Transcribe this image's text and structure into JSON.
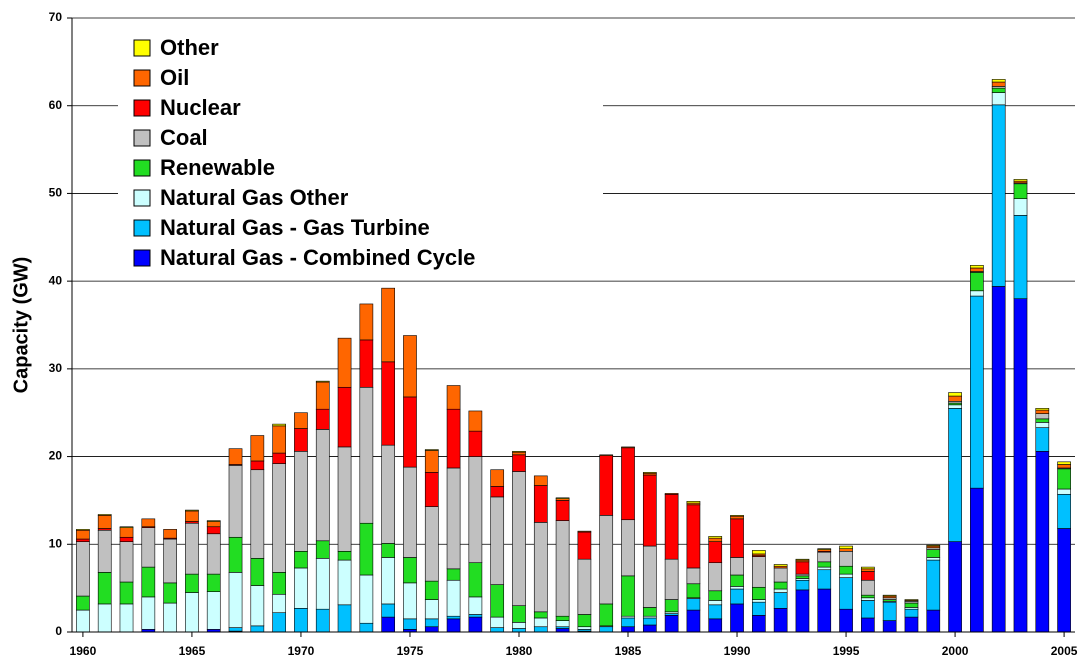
{
  "chart_data": {
    "type": "stacked_bar",
    "y_label": "Capacity (GW)",
    "x": [
      1960,
      1961,
      1962,
      1963,
      1964,
      1965,
      1966,
      1967,
      1968,
      1969,
      1970,
      1971,
      1972,
      1973,
      1974,
      1975,
      1976,
      1977,
      1978,
      1979,
      1980,
      1981,
      1982,
      1983,
      1984,
      1985,
      1986,
      1987,
      1988,
      1989,
      1990,
      1991,
      1992,
      1993,
      1994,
      1995,
      1996,
      1997,
      1998,
      1999,
      2000,
      2001,
      2002,
      2003,
      2004,
      2005
    ],
    "xlim": [
      1959.5,
      2005.5
    ],
    "xticks": [
      1960,
      1965,
      1970,
      1975,
      1980,
      1985,
      1990,
      1995,
      2000,
      2005
    ],
    "ylim": [
      0,
      70
    ],
    "yticks": [
      0,
      10,
      20,
      30,
      40,
      50,
      60,
      70
    ],
    "grid": true,
    "legend": "upper left",
    "series": [
      {
        "name": "Natural Gas - Combined Cycle",
        "color": "#0000ff",
        "values": [
          0,
          0,
          0,
          0.3,
          0,
          0,
          0.3,
          0.1,
          0,
          0,
          0,
          0,
          0,
          0,
          1.7,
          0.3,
          0.6,
          1.5,
          1.7,
          0,
          0,
          0,
          0.4,
          0.1,
          0,
          0.6,
          0.8,
          1.9,
          2.5,
          1.5,
          3.2,
          1.9,
          2.7,
          4.8,
          4.9,
          2.6,
          1.6,
          1.3,
          1.7,
          2.5,
          10.3,
          16.4,
          39.4,
          38.0,
          20.6,
          11.8
        ]
      },
      {
        "name": "Natural Gas - Gas Turbine",
        "color": "#00c0ff",
        "values": [
          0,
          0,
          0,
          0,
          0,
          0,
          0,
          0.4,
          0.7,
          2.2,
          2.7,
          2.6,
          3.1,
          1.0,
          1.5,
          1.2,
          0.9,
          0.3,
          0.3,
          0.5,
          0.4,
          0.6,
          0.2,
          0.2,
          0.6,
          1.0,
          0.8,
          0.2,
          1.3,
          1.6,
          1.7,
          1.5,
          1.8,
          1.1,
          2.2,
          3.6,
          2.0,
          2.1,
          0.9,
          5.7,
          15.2,
          21.9,
          20.7,
          9.5,
          2.7,
          3.9
        ]
      },
      {
        "name": "Natural Gas Other",
        "color": "#ccffff",
        "values": [
          2.5,
          3.2,
          3.2,
          3.7,
          3.3,
          4.5,
          4.3,
          6.3,
          4.6,
          2.1,
          4.6,
          5.8,
          5.1,
          5.5,
          5.3,
          4.1,
          2.2,
          4.1,
          2.0,
          1.2,
          0.7,
          1.0,
          0.7,
          0.3,
          0.1,
          0.2,
          0.2,
          0.2,
          0.1,
          0.5,
          0.3,
          0.3,
          0.4,
          0.2,
          0.3,
          0.4,
          0.3,
          0.1,
          0.2,
          0.3,
          0.4,
          0.6,
          1.4,
          1.9,
          0.6,
          0.6
        ]
      },
      {
        "name": "Renewable",
        "color": "#22dd22",
        "values": [
          1.6,
          3.6,
          2.5,
          3.4,
          2.3,
          2.1,
          2.0,
          4.0,
          3.1,
          2.5,
          1.9,
          2.0,
          1.0,
          5.9,
          1.6,
          2.9,
          2.1,
          1.3,
          3.9,
          3.7,
          1.9,
          0.7,
          0.5,
          1.4,
          2.5,
          4.6,
          1.0,
          1.4,
          1.6,
          1.1,
          1.3,
          1.4,
          0.8,
          0.3,
          0.6,
          0.9,
          0.3,
          0.2,
          0.5,
          0.9,
          0.2,
          2.1,
          0.5,
          1.7,
          0.4,
          2.3
        ]
      },
      {
        "name": "Coal",
        "color": "#c0c0c0",
        "values": [
          6.2,
          4.8,
          4.6,
          4.5,
          5.0,
          5.8,
          4.6,
          8.2,
          10.1,
          12.4,
          11.4,
          12.7,
          11.9,
          15.5,
          11.2,
          10.3,
          8.5,
          11.5,
          12.1,
          10.0,
          15.3,
          10.2,
          10.9,
          6.3,
          10.1,
          6.4,
          7.0,
          4.6,
          1.8,
          3.2,
          2.0,
          3.5,
          1.6,
          0.2,
          1.1,
          1.7,
          1.7,
          0.2,
          0.2,
          0.2,
          0.2,
          0.1,
          0.2,
          0.1,
          0.6,
          0.1
        ]
      },
      {
        "name": "Nuclear",
        "color": "#ff0000",
        "values": [
          0.3,
          0.2,
          0.5,
          0.1,
          0.1,
          0.2,
          0.8,
          0.1,
          1.0,
          1.2,
          2.6,
          2.3,
          6.8,
          5.4,
          9.5,
          8.0,
          3.9,
          6.7,
          2.9,
          1.2,
          1.9,
          4.2,
          2.3,
          3.1,
          6.8,
          8.2,
          8.1,
          7.4,
          7.2,
          2.4,
          4.4,
          0.1,
          0,
          1.4,
          0.1,
          0,
          1.0,
          0,
          0,
          0,
          0,
          0,
          0,
          0,
          0,
          0
        ]
      },
      {
        "name": "Oil",
        "color": "#ff6600",
        "values": [
          1.0,
          1.5,
          1.1,
          0.9,
          1.0,
          1.2,
          0.6,
          1.8,
          2.9,
          3.1,
          1.8,
          3.1,
          5.6,
          4.1,
          8.4,
          7.0,
          2.5,
          2.7,
          2.3,
          1.9,
          0.3,
          1.1,
          0.2,
          0.1,
          0.1,
          0.1,
          0.2,
          0.1,
          0.2,
          0.4,
          0.3,
          0.2,
          0.2,
          0.2,
          0.2,
          0.3,
          0.3,
          0.2,
          0.1,
          0.2,
          0.6,
          0.4,
          0.5,
          0.2,
          0.4,
          0.4
        ]
      },
      {
        "name": "Other",
        "color": "#ffff00",
        "values": [
          0.1,
          0.1,
          0.1,
          0,
          0,
          0.1,
          0.1,
          0,
          0,
          0.2,
          0,
          0.1,
          0,
          0,
          0,
          0,
          0.1,
          0,
          0,
          0,
          0.1,
          0,
          0.1,
          0,
          0,
          0,
          0.1,
          0,
          0.2,
          0.2,
          0.1,
          0.4,
          0.2,
          0.1,
          0.1,
          0.3,
          0.2,
          0.1,
          0.1,
          0.1,
          0.4,
          0.3,
          0.3,
          0.2,
          0.2,
          0.3
        ]
      }
    ]
  }
}
